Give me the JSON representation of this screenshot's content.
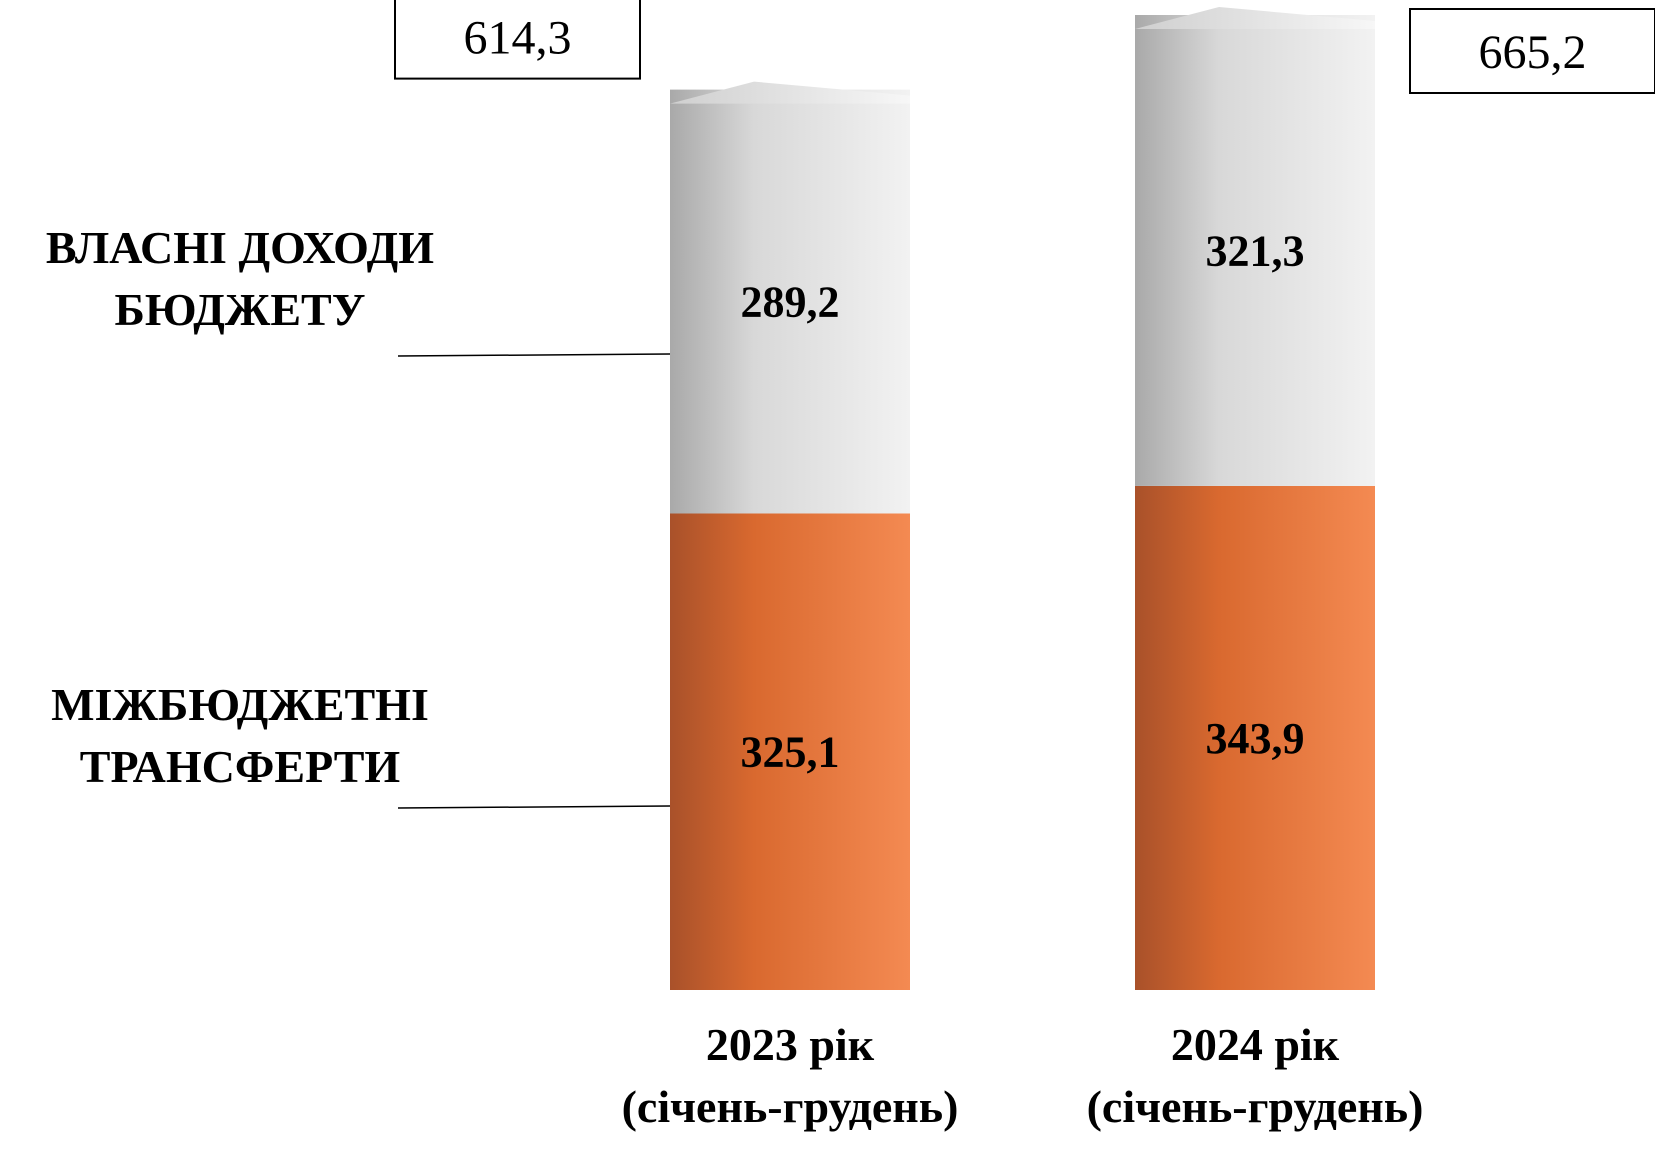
{
  "chart_data": {
    "type": "bar",
    "stacked": true,
    "categories": [
      [
        "2023 рік",
        "(січень-грудень)"
      ],
      [
        "2024 рік",
        "(січень-грудень)"
      ]
    ],
    "series": [
      {
        "name": [
          "МІЖБЮДЖЕТНІ",
          "ТРАНСФЕРТИ"
        ],
        "values": [
          325.1,
          343.9
        ],
        "value_labels": [
          "325,1",
          "343,9"
        ],
        "color": "#e2733b"
      },
      {
        "name": [
          "ВЛАСНІ ДОХОДИ",
          "БЮДЖЕТУ"
        ],
        "values": [
          289.2,
          321.3
        ],
        "value_labels": [
          "289,2",
          "321,3"
        ],
        "color": "#dcdcdc"
      }
    ],
    "totals": [
      614.3,
      665.2
    ],
    "total_labels": [
      "614,3",
      "665,2"
    ],
    "ylim": [
      0,
      665.2
    ],
    "grid": false,
    "legend": "left"
  }
}
